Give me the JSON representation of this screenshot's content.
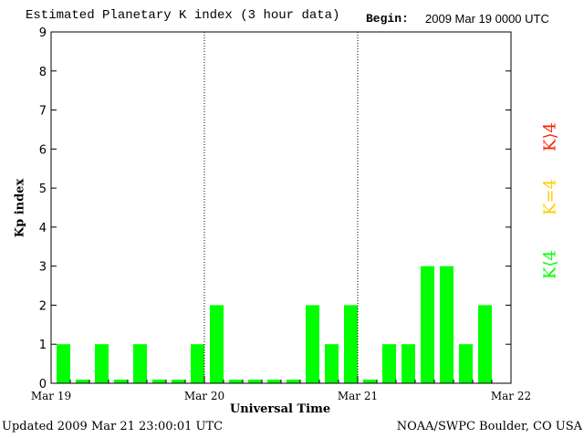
{
  "header": {
    "title": "Estimated Planetary K index (3 hour data)",
    "begin_label": "Begin:",
    "begin_value": "2009 Mar 19 0000 UTC"
  },
  "footer": {
    "updated": "Updated 2009 Mar 21 23:00:01 UTC",
    "source": "NOAA/SWPC Boulder, CO USA"
  },
  "legend": {
    "high": {
      "label": "K⟩4",
      "color": "#ff2200"
    },
    "equal": {
      "label": "K=4",
      "color": "#ffcc00"
    },
    "low": {
      "label": "K⟨4",
      "color": "#00ff00"
    }
  },
  "chart_data": {
    "type": "bar",
    "xlabel": "Universal Time",
    "ylabel": "Kp index",
    "ylim": [
      0,
      9
    ],
    "yticks": [
      "0",
      "1",
      "2",
      "3",
      "4",
      "5",
      "6",
      "7",
      "8",
      "9"
    ],
    "xticks": [
      "Mar 19",
      "Mar 20",
      "Mar 21",
      "Mar 22"
    ],
    "bar_color": "#00ff00",
    "values": [
      1,
      0,
      1,
      0,
      1,
      0,
      0,
      1,
      2,
      0,
      0,
      0,
      0,
      2,
      1,
      2,
      0,
      1,
      1,
      3,
      3,
      1,
      2
    ],
    "day_separators": [
      "Mar 20",
      "Mar 21"
    ]
  }
}
